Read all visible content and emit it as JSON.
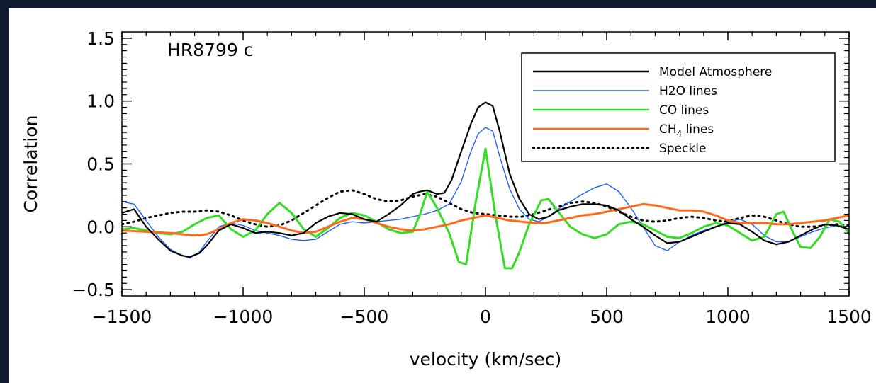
{
  "chart_data": {
    "type": "line",
    "title": "HR8799 c",
    "xlabel": "velocity (km/sec)",
    "ylabel": "Correlation",
    "xlim": [
      -1500,
      1500
    ],
    "ylim": [
      -0.55,
      1.55
    ],
    "xticks": [
      -1500,
      -1000,
      -500,
      0,
      500,
      1000,
      1500
    ],
    "xtick_labels": [
      "−1500",
      "−1000",
      "−500",
      "0",
      "500",
      "1000",
      "1500"
    ],
    "yticks": [
      -0.5,
      0.0,
      0.5,
      1.0,
      1.5
    ],
    "ytick_labels": [
      "−0.5",
      "0.0",
      "0.5",
      "1.0",
      "1.5"
    ],
    "grid": false,
    "legend_position": "top-right",
    "series": [
      {
        "name": "Model Atmosphere",
        "color": "#000000",
        "style": "solid",
        "x": [
          -1500,
          -1450,
          -1400,
          -1350,
          -1300,
          -1250,
          -1220,
          -1180,
          -1150,
          -1100,
          -1050,
          -1000,
          -950,
          -900,
          -850,
          -800,
          -750,
          -700,
          -650,
          -600,
          -550,
          -500,
          -450,
          -400,
          -350,
          -300,
          -270,
          -240,
          -200,
          -170,
          -140,
          -100,
          -60,
          -30,
          0,
          30,
          60,
          100,
          140,
          180,
          220,
          260,
          300,
          350,
          400,
          450,
          500,
          550,
          600,
          650,
          700,
          750,
          800,
          850,
          900,
          950,
          1000,
          1050,
          1100,
          1150,
          1200,
          1250,
          1300,
          1350,
          1400,
          1450,
          1500
        ],
        "y": [
          0.11,
          0.14,
          0.0,
          -0.1,
          -0.19,
          -0.23,
          -0.24,
          -0.21,
          -0.15,
          -0.03,
          0.02,
          -0.01,
          -0.05,
          -0.04,
          -0.05,
          -0.07,
          -0.05,
          0.03,
          0.08,
          0.11,
          0.1,
          0.06,
          0.04,
          0.1,
          0.17,
          0.26,
          0.28,
          0.29,
          0.26,
          0.27,
          0.37,
          0.6,
          0.82,
          0.95,
          0.99,
          0.96,
          0.75,
          0.42,
          0.22,
          0.1,
          0.06,
          0.08,
          0.13,
          0.16,
          0.18,
          0.18,
          0.17,
          0.13,
          0.06,
          0.0,
          -0.07,
          -0.13,
          -0.12,
          -0.08,
          -0.04,
          0.0,
          0.03,
          0.02,
          -0.04,
          -0.11,
          -0.14,
          -0.12,
          -0.07,
          -0.02,
          0.02,
          0.01,
          -0.02
        ]
      },
      {
        "name": "H2O lines",
        "color": "#1f5fff",
        "style": "solid",
        "x": [
          -1500,
          -1450,
          -1400,
          -1350,
          -1300,
          -1250,
          -1220,
          -1180,
          -1150,
          -1100,
          -1050,
          -1000,
          -950,
          -900,
          -850,
          -800,
          -750,
          -700,
          -650,
          -600,
          -550,
          -500,
          -450,
          -400,
          -350,
          -300,
          -250,
          -200,
          -150,
          -100,
          -60,
          -30,
          0,
          30,
          60,
          100,
          140,
          180,
          220,
          260,
          300,
          350,
          400,
          450,
          500,
          550,
          600,
          650,
          700,
          750,
          800,
          850,
          900,
          950,
          1000,
          1050,
          1100,
          1150,
          1200,
          1250,
          1300,
          1350,
          1400,
          1450,
          1500
        ],
        "y": [
          0.2,
          0.18,
          0.05,
          -0.08,
          -0.18,
          -0.23,
          -0.25,
          -0.2,
          -0.12,
          0.0,
          0.03,
          0.01,
          -0.03,
          -0.05,
          -0.07,
          -0.1,
          -0.11,
          -0.1,
          -0.04,
          0.02,
          0.04,
          0.03,
          0.04,
          0.05,
          0.06,
          0.08,
          0.1,
          0.13,
          0.18,
          0.36,
          0.6,
          0.74,
          0.79,
          0.76,
          0.55,
          0.3,
          0.14,
          0.06,
          0.04,
          0.08,
          0.14,
          0.2,
          0.26,
          0.31,
          0.34,
          0.28,
          0.15,
          0.0,
          -0.15,
          -0.19,
          -0.12,
          -0.07,
          -0.03,
          0.0,
          0.04,
          0.06,
          0.02,
          -0.07,
          -0.12,
          -0.12,
          -0.08,
          -0.04,
          -0.01,
          0.01,
          0.0
        ]
      },
      {
        "name": "CO lines",
        "color": "#33dd22",
        "style": "solid",
        "x": [
          -1500,
          -1450,
          -1400,
          -1350,
          -1300,
          -1250,
          -1200,
          -1150,
          -1100,
          -1050,
          -1000,
          -950,
          -900,
          -850,
          -800,
          -750,
          -700,
          -650,
          -600,
          -550,
          -500,
          -450,
          -400,
          -350,
          -300,
          -270,
          -240,
          -200,
          -150,
          -110,
          -80,
          -40,
          0,
          40,
          80,
          110,
          140,
          180,
          230,
          260,
          300,
          350,
          400,
          450,
          500,
          550,
          600,
          650,
          700,
          750,
          800,
          850,
          900,
          950,
          1000,
          1050,
          1100,
          1150,
          1200,
          1230,
          1270,
          1300,
          1340,
          1380,
          1420,
          1460,
          1500
        ],
        "y": [
          -0.02,
          -0.01,
          -0.03,
          -0.05,
          -0.06,
          -0.04,
          0.02,
          0.07,
          0.09,
          -0.02,
          -0.08,
          -0.03,
          0.1,
          0.19,
          0.11,
          -0.02,
          -0.08,
          -0.01,
          0.07,
          0.11,
          0.09,
          0.04,
          -0.02,
          -0.05,
          -0.04,
          0.1,
          0.28,
          0.15,
          -0.05,
          -0.28,
          -0.3,
          0.2,
          0.62,
          0.1,
          -0.33,
          -0.33,
          -0.2,
          0.02,
          0.21,
          0.22,
          0.12,
          0.0,
          -0.06,
          -0.09,
          -0.06,
          0.02,
          0.04,
          0.02,
          -0.03,
          -0.08,
          -0.09,
          -0.05,
          0.0,
          0.03,
          0.01,
          -0.05,
          -0.11,
          -0.08,
          0.1,
          0.12,
          -0.05,
          -0.16,
          -0.17,
          -0.08,
          0.06,
          0.04,
          -0.05
        ]
      },
      {
        "name": "CH4 lines",
        "color": "#ff6a1a",
        "style": "solid",
        "x": [
          -1500,
          -1400,
          -1300,
          -1250,
          -1200,
          -1150,
          -1100,
          -1050,
          -1000,
          -950,
          -900,
          -850,
          -800,
          -750,
          -700,
          -650,
          -600,
          -550,
          -500,
          -450,
          -400,
          -350,
          -300,
          -250,
          -200,
          -150,
          -100,
          -50,
          0,
          50,
          100,
          150,
          200,
          250,
          300,
          350,
          400,
          450,
          500,
          550,
          600,
          650,
          700,
          750,
          800,
          850,
          900,
          950,
          1000,
          1050,
          1100,
          1150,
          1200,
          1250,
          1300,
          1350,
          1400,
          1450,
          1500
        ],
        "y": [
          -0.03,
          -0.04,
          -0.05,
          -0.06,
          -0.07,
          -0.06,
          -0.02,
          0.03,
          0.06,
          0.05,
          0.03,
          0.0,
          -0.03,
          -0.05,
          -0.04,
          0.0,
          0.04,
          0.07,
          0.06,
          0.03,
          0.0,
          -0.02,
          -0.03,
          -0.02,
          0.0,
          0.02,
          0.05,
          0.07,
          0.09,
          0.07,
          0.05,
          0.04,
          0.03,
          0.03,
          0.05,
          0.07,
          0.09,
          0.1,
          0.12,
          0.14,
          0.16,
          0.18,
          0.17,
          0.15,
          0.13,
          0.13,
          0.12,
          0.09,
          0.05,
          0.03,
          0.03,
          0.03,
          0.02,
          0.02,
          0.03,
          0.04,
          0.05,
          0.07,
          0.09
        ]
      },
      {
        "name": "Speckle",
        "color": "#000000",
        "style": "dotted",
        "x": [
          -1500,
          -1450,
          -1400,
          -1350,
          -1300,
          -1250,
          -1200,
          -1150,
          -1100,
          -1050,
          -1000,
          -950,
          -900,
          -850,
          -800,
          -750,
          -700,
          -650,
          -600,
          -550,
          -500,
          -450,
          -400,
          -350,
          -300,
          -250,
          -200,
          -150,
          -100,
          -50,
          0,
          50,
          100,
          150,
          200,
          250,
          300,
          350,
          400,
          450,
          500,
          550,
          600,
          650,
          700,
          750,
          800,
          850,
          900,
          950,
          1000,
          1050,
          1100,
          1150,
          1200,
          1250,
          1300,
          1350,
          1400,
          1450,
          1500
        ],
        "y": [
          0.02,
          0.04,
          0.07,
          0.09,
          0.11,
          0.12,
          0.12,
          0.13,
          0.12,
          0.09,
          0.05,
          0.02,
          0.0,
          0.01,
          0.05,
          0.11,
          0.17,
          0.23,
          0.28,
          0.29,
          0.26,
          0.22,
          0.2,
          0.21,
          0.24,
          0.26,
          0.24,
          0.19,
          0.14,
          0.11,
          0.1,
          0.09,
          0.08,
          0.08,
          0.1,
          0.13,
          0.16,
          0.19,
          0.2,
          0.19,
          0.16,
          0.12,
          0.08,
          0.05,
          0.04,
          0.05,
          0.07,
          0.08,
          0.07,
          0.05,
          0.04,
          0.07,
          0.09,
          0.08,
          0.05,
          0.02,
          0.0,
          0.0,
          0.01,
          0.02,
          0.01
        ]
      }
    ],
    "legend": [
      {
        "label": "Model Atmosphere",
        "color": "#000000",
        "style": "solid"
      },
      {
        "label": "H2O lines",
        "color": "#1f5fff",
        "style": "solid"
      },
      {
        "label": "CO lines",
        "color": "#33dd22",
        "style": "solid"
      },
      {
        "label": "CH",
        "sub": "4",
        "suffix": " lines",
        "color": "#ff6a1a",
        "style": "solid"
      },
      {
        "label": "Speckle",
        "color": "#000000",
        "style": "dotted"
      }
    ]
  }
}
